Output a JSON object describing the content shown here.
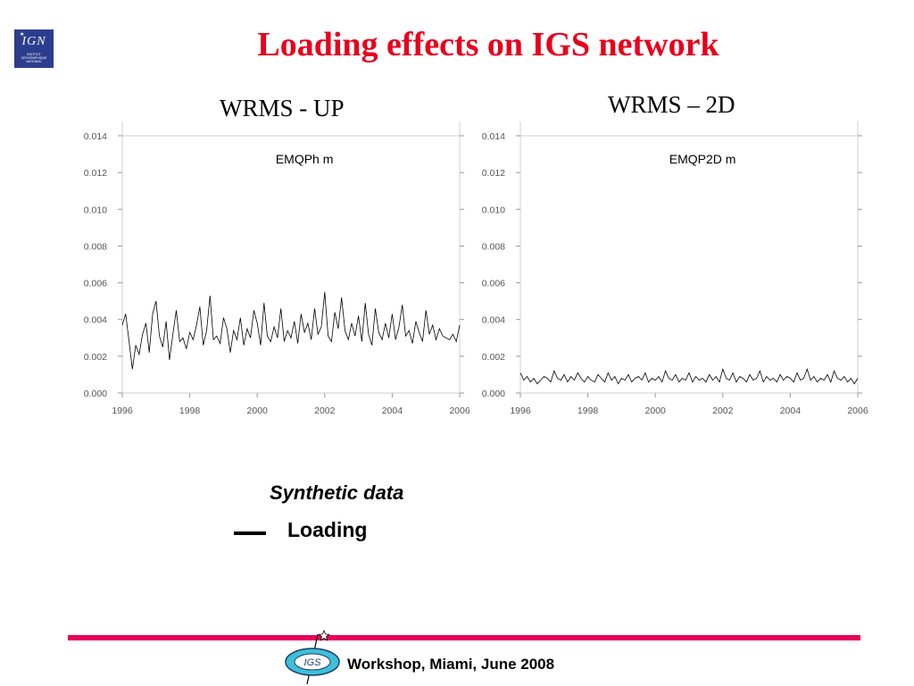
{
  "header": {
    "logo_text": "IGN",
    "logo_subtext": "INSTITUT GÉOGRAPHIQUE NATIONAL",
    "title": "Loading effects on IGS network"
  },
  "panels": {
    "left_title": "WRMS - UP",
    "right_title": "WRMS – 2D"
  },
  "legend": {
    "synthetic_label": "Synthetic data",
    "loading_label": "Loading",
    "line_color": "#000000"
  },
  "footer": {
    "logo_text": "IGS",
    "text": "Workshop, Miami, June 2008",
    "bar_color": "#e8005c"
  },
  "colors": {
    "title": "#e8001c",
    "series_line": "#000000"
  },
  "chart_data": [
    {
      "type": "line",
      "title": "EMQPh m",
      "xlim": [
        1996,
        2006
      ],
      "ylim": [
        0,
        0.014
      ],
      "xticks": [
        1996,
        1998,
        2000,
        2002,
        2004,
        2006
      ],
      "yticks": [
        "0.000",
        "0.002",
        "0.004",
        "0.006",
        "0.008",
        "0.010",
        "0.012",
        "0.014"
      ],
      "grid": false,
      "series": [
        {
          "x": [
            1996.0,
            1996.1,
            1996.2,
            1996.3,
            1996.4,
            1996.5,
            1996.6,
            1996.7,
            1996.8,
            1996.9,
            1997.0,
            1997.1,
            1997.2,
            1997.3,
            1997.4,
            1997.5,
            1997.6,
            1997.7,
            1997.8,
            1997.9,
            1998.0,
            1998.1,
            1998.2,
            1998.3,
            1998.4,
            1998.5,
            1998.6,
            1998.7,
            1998.8,
            1998.9,
            1999.0,
            1999.1,
            1999.2,
            1999.3,
            1999.4,
            1999.5,
            1999.6,
            1999.7,
            1999.8,
            1999.9,
            2000.0,
            2000.1,
            2000.2,
            2000.3,
            2000.4,
            2000.5,
            2000.6,
            2000.7,
            2000.8,
            2000.9,
            2001.0,
            2001.1,
            2001.2,
            2001.3,
            2001.4,
            2001.5,
            2001.6,
            2001.7,
            2001.8,
            2001.9,
            2002.0,
            2002.1,
            2002.2,
            2002.3,
            2002.4,
            2002.5,
            2002.6,
            2002.7,
            2002.8,
            2002.9,
            2003.0,
            2003.1,
            2003.2,
            2003.3,
            2003.4,
            2003.5,
            2003.6,
            2003.7,
            2003.8,
            2003.9,
            2004.0,
            2004.1,
            2004.2,
            2004.3,
            2004.4,
            2004.5,
            2004.6,
            2004.7,
            2004.8,
            2004.9,
            2005.0,
            2005.1,
            2005.2,
            2005.3,
            2005.4,
            2005.5,
            2005.6,
            2005.7,
            2005.8,
            2005.9,
            2006.0
          ],
          "y": [
            0.0037,
            0.0043,
            0.0028,
            0.0013,
            0.0026,
            0.0021,
            0.0032,
            0.0038,
            0.0022,
            0.0043,
            0.005,
            0.0031,
            0.0025,
            0.0039,
            0.0018,
            0.0032,
            0.0045,
            0.0028,
            0.003,
            0.0024,
            0.0033,
            0.0029,
            0.0037,
            0.0047,
            0.0026,
            0.0034,
            0.0053,
            0.0029,
            0.0031,
            0.0027,
            0.0041,
            0.0035,
            0.0022,
            0.0034,
            0.0029,
            0.0041,
            0.0026,
            0.0035,
            0.003,
            0.0045,
            0.0038,
            0.0026,
            0.0049,
            0.0031,
            0.0028,
            0.0036,
            0.003,
            0.0046,
            0.0028,
            0.0034,
            0.003,
            0.0039,
            0.0027,
            0.0043,
            0.0033,
            0.0038,
            0.0029,
            0.0046,
            0.0032,
            0.0036,
            0.0055,
            0.0031,
            0.0028,
            0.0044,
            0.0035,
            0.0052,
            0.0034,
            0.0029,
            0.0038,
            0.0031,
            0.0042,
            0.0028,
            0.0049,
            0.0032,
            0.0026,
            0.0046,
            0.0033,
            0.0029,
            0.0038,
            0.003,
            0.0043,
            0.0029,
            0.0036,
            0.0048,
            0.0031,
            0.0034,
            0.0027,
            0.0039,
            0.0033,
            0.0028,
            0.0045,
            0.0032,
            0.0037,
            0.0029,
            0.0035,
            0.0031,
            0.003,
            0.0029,
            0.0032,
            0.0028,
            0.0037
          ]
        }
      ]
    },
    {
      "type": "line",
      "title": "EMQP2D m",
      "xlim": [
        1996,
        2006
      ],
      "ylim": [
        0,
        0.014
      ],
      "xticks": [
        1996,
        1998,
        2000,
        2002,
        2004,
        2006
      ],
      "yticks": [
        "0.000",
        "0.002",
        "0.004",
        "0.006",
        "0.008",
        "0.010",
        "0.012",
        "0.014"
      ],
      "grid": false,
      "series": [
        {
          "x": [
            1996.0,
            1996.1,
            1996.2,
            1996.3,
            1996.4,
            1996.5,
            1996.6,
            1996.7,
            1996.8,
            1996.9,
            1997.0,
            1997.1,
            1997.2,
            1997.3,
            1997.4,
            1997.5,
            1997.6,
            1997.7,
            1997.8,
            1997.9,
            1998.0,
            1998.1,
            1998.2,
            1998.3,
            1998.4,
            1998.5,
            1998.6,
            1998.7,
            1998.8,
            1998.9,
            1999.0,
            1999.1,
            1999.2,
            1999.3,
            1999.4,
            1999.5,
            1999.6,
            1999.7,
            1999.8,
            1999.9,
            2000.0,
            2000.1,
            2000.2,
            2000.3,
            2000.4,
            2000.5,
            2000.6,
            2000.7,
            2000.8,
            2000.9,
            2001.0,
            2001.1,
            2001.2,
            2001.3,
            2001.4,
            2001.5,
            2001.6,
            2001.7,
            2001.8,
            2001.9,
            2002.0,
            2002.1,
            2002.2,
            2002.3,
            2002.4,
            2002.5,
            2002.6,
            2002.7,
            2002.8,
            2002.9,
            2003.0,
            2003.1,
            2003.2,
            2003.3,
            2003.4,
            2003.5,
            2003.6,
            2003.7,
            2003.8,
            2003.9,
            2004.0,
            2004.1,
            2004.2,
            2004.3,
            2004.4,
            2004.5,
            2004.6,
            2004.7,
            2004.8,
            2004.9,
            2005.0,
            2005.1,
            2005.2,
            2005.3,
            2005.4,
            2005.5,
            2005.6,
            2005.7,
            2005.8,
            2005.9,
            2006.0
          ],
          "y": [
            0.0011,
            0.0007,
            0.0009,
            0.0006,
            0.0008,
            0.0005,
            0.0007,
            0.0009,
            0.0008,
            0.0006,
            0.0012,
            0.0008,
            0.0007,
            0.001,
            0.0006,
            0.0009,
            0.0007,
            0.0011,
            0.0008,
            0.0006,
            0.0009,
            0.0007,
            0.0006,
            0.001,
            0.0008,
            0.0006,
            0.0011,
            0.0007,
            0.0009,
            0.0005,
            0.0008,
            0.0007,
            0.001,
            0.0006,
            0.0008,
            0.0009,
            0.0007,
            0.0011,
            0.0006,
            0.0008,
            0.0007,
            0.0009,
            0.0006,
            0.0012,
            0.0008,
            0.0007,
            0.001,
            0.0006,
            0.0008,
            0.0007,
            0.0011,
            0.0006,
            0.0009,
            0.0007,
            0.0008,
            0.0006,
            0.001,
            0.0007,
            0.0009,
            0.0006,
            0.0013,
            0.0008,
            0.0007,
            0.0011,
            0.0006,
            0.0009,
            0.0008,
            0.0006,
            0.001,
            0.0007,
            0.0008,
            0.0012,
            0.0006,
            0.0009,
            0.0007,
            0.0008,
            0.0006,
            0.001,
            0.0007,
            0.0009,
            0.0008,
            0.0006,
            0.0011,
            0.0007,
            0.0008,
            0.0013,
            0.0007,
            0.0009,
            0.0006,
            0.0008,
            0.0007,
            0.001,
            0.0006,
            0.0012,
            0.0008,
            0.0007,
            0.0009,
            0.0006,
            0.0008,
            0.0005,
            0.0008
          ]
        }
      ]
    }
  ]
}
